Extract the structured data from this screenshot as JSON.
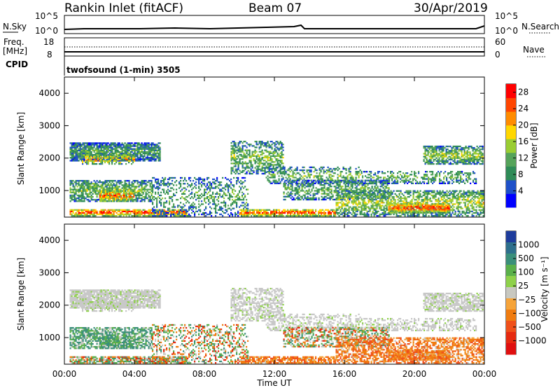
{
  "header": {
    "station": "Rankin Inlet (fitACF)",
    "beam": "Beam 07",
    "date": "30/Apr/2019"
  },
  "strip_panels": {
    "nsky_label": "N.Sky",
    "nsearch_label": "N.Search",
    "freq_label_1": "Freq.",
    "freq_label_2": "[MHz]",
    "nave_label": "Nave",
    "cpid_label": "CPID",
    "cpid_text": "twofsound (1-min) 3505",
    "n_left_ticks": [
      "10^5",
      "10^0"
    ],
    "n_right_ticks": [
      "10^5",
      "10^0"
    ],
    "freq_ticks": [
      "18",
      "8"
    ],
    "nave_ticks": [
      "60",
      "0"
    ]
  },
  "colors": {
    "power_scale": [
      "#0000ff",
      "#1e50c8",
      "#2e8b57",
      "#55a35a",
      "#9acd32",
      "#ffd700",
      "#ff8c00",
      "#ff4500",
      "#ff0000"
    ],
    "velocity_scale": [
      "#1e3c9c",
      "#2e6f8c",
      "#3a8f7a",
      "#5ab04a",
      "#8ed14a",
      "#c8c8c0",
      "#f6a43a",
      "#f07c10",
      "#f0501a",
      "#e62a10",
      "#e01010"
    ],
    "grey_scatter": "#c8c8c8"
  },
  "chart_data": [
    {
      "type": "heatmap",
      "title": "Power",
      "xlabel": "Time UT",
      "ylabel": "Slant Range [km]",
      "x_ticks": [
        "00:00",
        "04:00",
        "08:00",
        "12:00",
        "16:00",
        "20:00",
        "00:00"
      ],
      "y_ticks": [
        "1000",
        "2000",
        "3000",
        "4000"
      ],
      "xlim": [
        0,
        24
      ],
      "ylim": [
        180,
        4500
      ],
      "colorbar": {
        "label": "Power [dB]",
        "ticks": [
          "4",
          "8",
          "12",
          "16",
          "20",
          "24",
          "28"
        ],
        "range": [
          0,
          30
        ]
      }
    },
    {
      "type": "heatmap",
      "title": "Velocity",
      "xlabel": "Time UT",
      "ylabel": "Slant Range [km]",
      "x_ticks": [
        "00:00",
        "04:00",
        "08:00",
        "12:00",
        "16:00",
        "20:00",
        "00:00"
      ],
      "y_ticks": [
        "1000",
        "2000",
        "3000",
        "4000"
      ],
      "xlim": [
        0,
        24
      ],
      "ylim": [
        180,
        4500
      ],
      "colorbar": {
        "label": "Velocity [m s⁻¹]",
        "ticks": [
          "1000",
          "500",
          "100",
          "25",
          "−25",
          "−100",
          "−500",
          "−1000"
        ]
      }
    }
  ]
}
